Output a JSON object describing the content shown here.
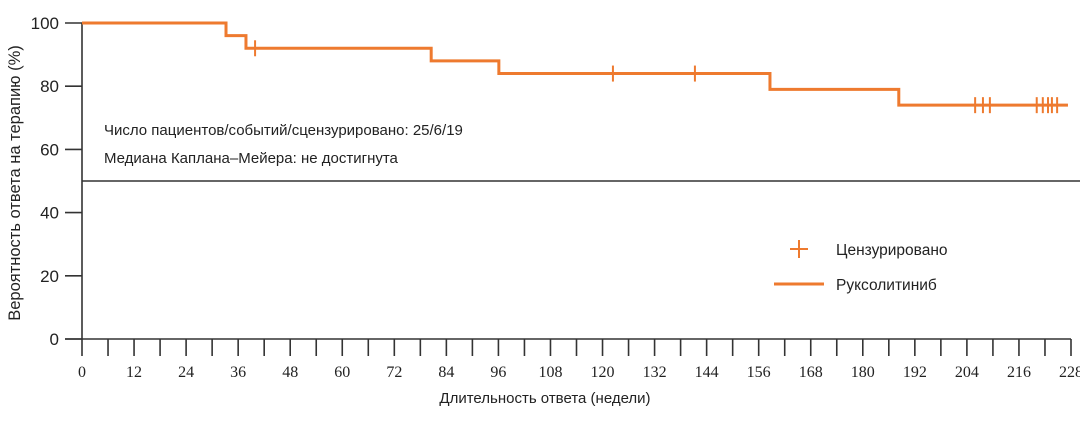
{
  "chart_data": {
    "type": "line",
    "subtype": "kaplan-meier step",
    "title": "",
    "xlabel": "Длительность ответа (недели)",
    "ylabel": "Вероятность ответа на терапию (%)",
    "xlim": [
      0,
      228
    ],
    "ylim": [
      0,
      100
    ],
    "xticks": [
      0,
      6,
      12,
      18,
      24,
      30,
      36,
      42,
      48,
      54,
      60,
      66,
      72,
      78,
      84,
      90,
      96,
      102,
      108,
      114,
      120,
      126,
      132,
      138,
      144,
      150,
      156,
      162,
      168,
      174,
      180,
      186,
      192,
      198,
      204,
      210,
      216,
      222,
      228
    ],
    "xtick_labels": [
      "0",
      "12",
      "24",
      "36",
      "48",
      "60",
      "72",
      "84",
      "96",
      "108",
      "120",
      "132",
      "144",
      "156",
      "168",
      "180",
      "192",
      "204",
      "216",
      "228"
    ],
    "yticks": [
      0,
      20,
      40,
      60,
      80,
      100
    ],
    "ytick_labels": [
      "0",
      "20",
      "40",
      "60",
      "80",
      "100"
    ],
    "grid": false,
    "reference_line": {
      "y": 50,
      "color": "#333333"
    },
    "series": [
      {
        "name": "Руксолитиниб",
        "color": "#EE7A2F",
        "steps": [
          {
            "x": 0,
            "y": 100
          },
          {
            "x": 33.2,
            "y": 96
          },
          {
            "x": 37.8,
            "y": 92
          },
          {
            "x": 80.5,
            "y": 88
          },
          {
            "x": 96.1,
            "y": 84
          },
          {
            "x": 158.6,
            "y": 79
          },
          {
            "x": 188.3,
            "y": 74
          }
        ],
        "end_x": 227.3,
        "censored": [
          {
            "x": 39.9,
            "y": 92
          },
          {
            "x": 122.4,
            "y": 84
          },
          {
            "x": 141.3,
            "y": 84
          },
          {
            "x": 205.9,
            "y": 74
          },
          {
            "x": 207.7,
            "y": 74
          },
          {
            "x": 209.3,
            "y": 74
          },
          {
            "x": 220.1,
            "y": 74
          },
          {
            "x": 221.5,
            "y": 74
          },
          {
            "x": 222.7,
            "y": 74
          },
          {
            "x": 223.6,
            "y": 74
          },
          {
            "x": 224.8,
            "y": 74
          }
        ]
      }
    ],
    "annotations": [
      "Число пациентов/событий/сцензурировано: 25/6/19",
      "Медиана Каплана–Мейера: не достигнута"
    ],
    "legend": {
      "position": "right-middle",
      "entries": [
        {
          "label": "Цензурировано",
          "marker": "plus",
          "color": "#EE7A2F"
        },
        {
          "label": "Руксолитиниб",
          "marker": "line",
          "color": "#EE7A2F"
        }
      ]
    },
    "summary": {
      "patients": 25,
      "events": 6,
      "censored": 19,
      "median": "не достигнута"
    }
  },
  "labels": {
    "ylabel": "Вероятность ответа на терапию (%)",
    "xlabel": "Длительность ответа (недели)",
    "annot1": "Число пациентов/событий/сцензурировано: 25/6/19",
    "annot2": "Медиана Каплана–Мейера: не достигнута",
    "legend_censored": "Цензурировано",
    "legend_series": "Руксолитиниб"
  },
  "colors": {
    "series": "#EE7A2F",
    "axis": "#333333",
    "text": "#222222"
  }
}
